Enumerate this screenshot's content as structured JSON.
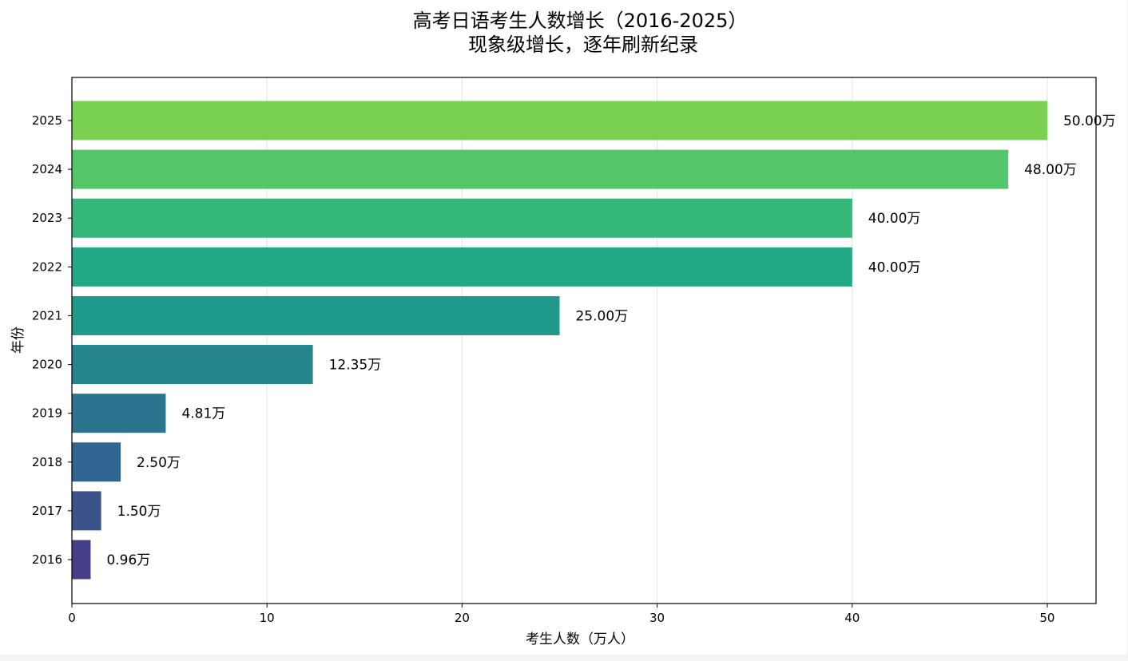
{
  "chart_data": {
    "type": "bar",
    "orientation": "horizontal",
    "title": "高考日语考生人数增长（2016-2025）",
    "subtitle": "现象级增长，逐年刷新纪录",
    "xlabel": "考生人数（万人）",
    "ylabel": "年份",
    "xlim": [
      0,
      52.5
    ],
    "xticks": [
      "0",
      "10",
      "20",
      "30",
      "40",
      "50"
    ],
    "grid": "vertical",
    "categories": [
      "2016",
      "2017",
      "2018",
      "2019",
      "2020",
      "2021",
      "2022",
      "2023",
      "2024",
      "2025"
    ],
    "values": [
      0.96,
      1.5,
      2.5,
      4.81,
      12.35,
      25.0,
      40.0,
      40.0,
      48.0,
      50.0
    ],
    "value_labels": [
      "0.96万",
      "1.50万",
      "2.50万",
      "4.81万",
      "12.35万",
      "25.00万",
      "40.00万",
      "40.00万",
      "48.00万",
      "50.00万"
    ],
    "colors": [
      "#453f88",
      "#3b528b",
      "#2f6590",
      "#2b7490",
      "#23858e",
      "#1f9a8a",
      "#22a884",
      "#35b779",
      "#54c568",
      "#7ad151"
    ]
  }
}
